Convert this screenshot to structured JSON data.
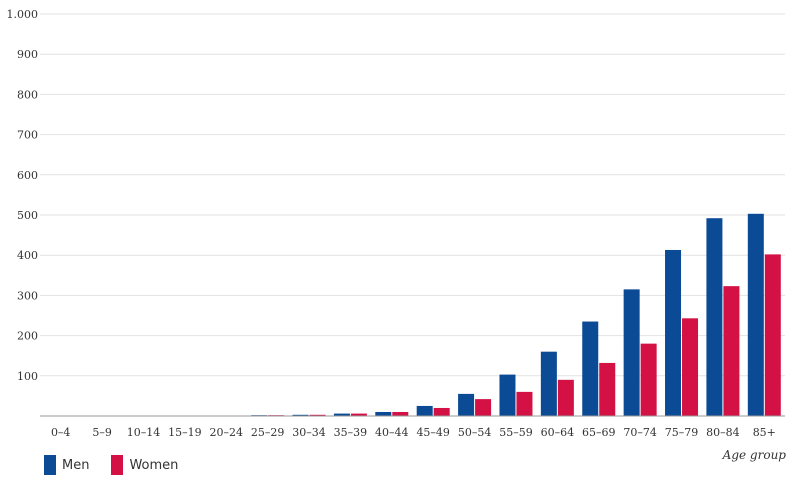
{
  "chart_data": {
    "type": "bar",
    "title": "",
    "xlabel": "Age group",
    "ylabel": "",
    "ylim": [
      0,
      1000
    ],
    "yticks": [
      100,
      200,
      300,
      400,
      500,
      600,
      700,
      800,
      900,
      1000
    ],
    "ytick_labels": [
      "100",
      "200",
      "300",
      "400",
      "500",
      "600",
      "700",
      "800",
      "900",
      "1.000"
    ],
    "categories": [
      "0–4",
      "5–9",
      "10–14",
      "15–19",
      "20–24",
      "25–29",
      "30–34",
      "35–39",
      "40–44",
      "45–49",
      "50–54",
      "55–59",
      "60–64",
      "65–69",
      "70–74",
      "75–79",
      "80–84",
      "85+"
    ],
    "series": [
      {
        "name": "Men",
        "color": "#0b4a94",
        "values": [
          0,
          0,
          0,
          1,
          1,
          2,
          3,
          6,
          10,
          25,
          55,
          103,
          160,
          235,
          315,
          413,
          492,
          503
        ]
      },
      {
        "name": "Women",
        "color": "#d31145",
        "values": [
          0,
          0,
          0,
          1,
          1,
          2,
          3,
          6,
          10,
          20,
          42,
          60,
          90,
          132,
          180,
          243,
          323,
          402
        ]
      }
    ],
    "grid": true,
    "legend_position": "bottom-left"
  }
}
